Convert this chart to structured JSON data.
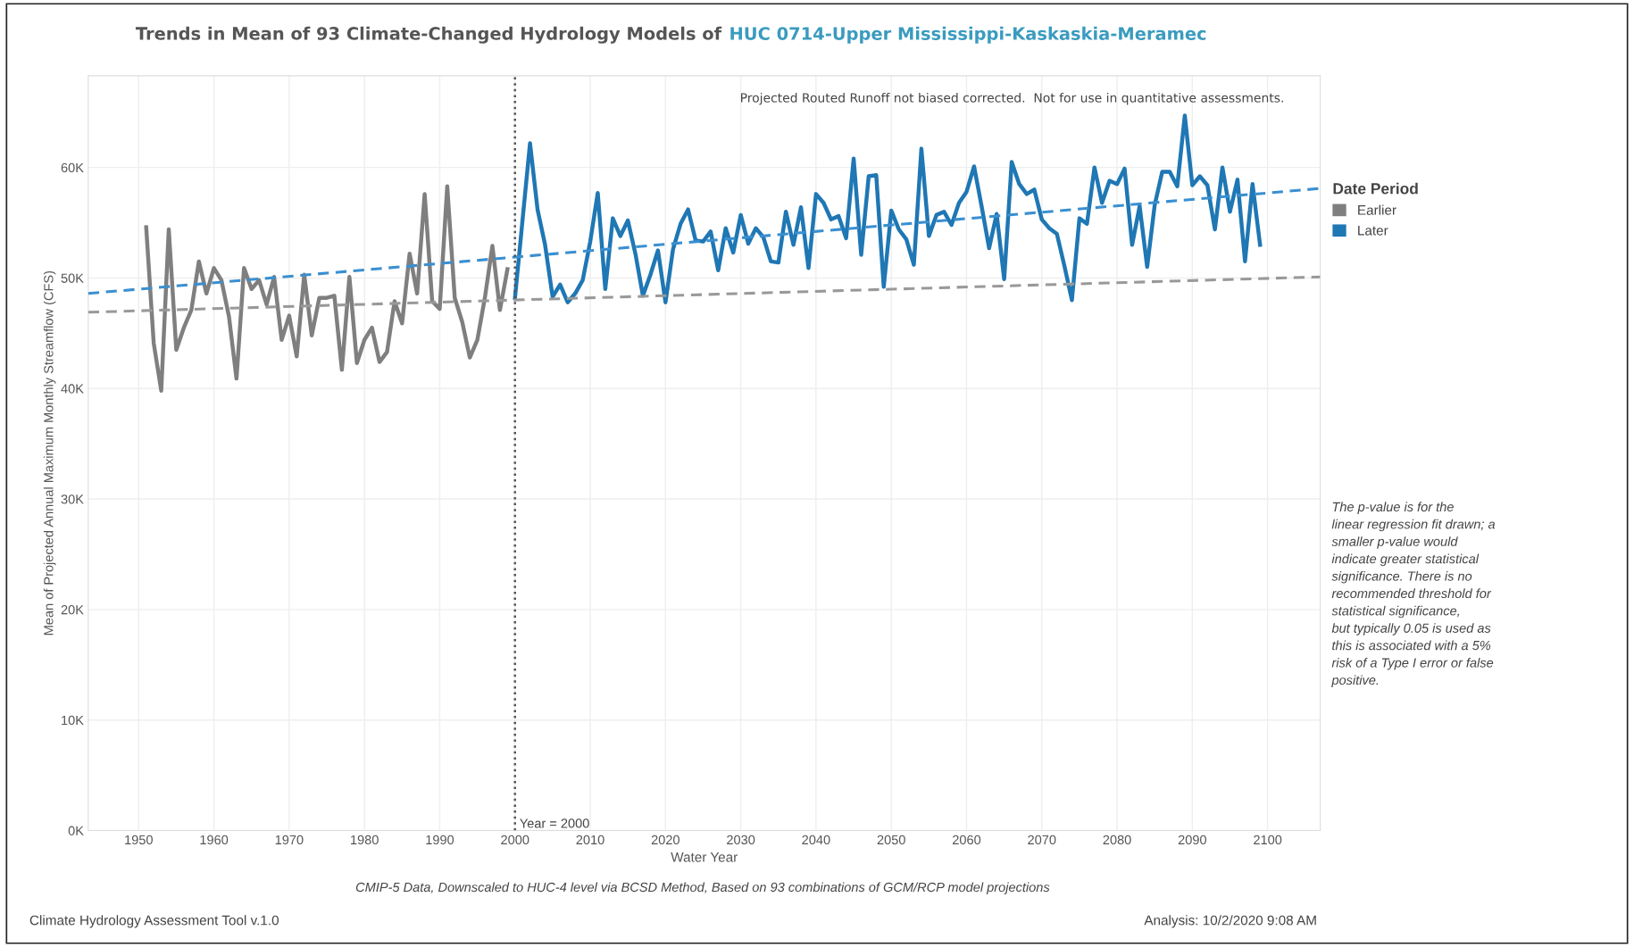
{
  "chart_data": {
    "type": "line",
    "title": "Trends in Mean of 93 Climate-Changed Hydrology Models of",
    "subtitle": "HUC 0714-Upper Mississippi-Kaskaskia-Meramec",
    "xlabel": "Water Year",
    "ylabel": "Mean of Projected Annual Maximum Monthly Streamflow (CFS)",
    "legend_title": "Date Period",
    "series": [
      {
        "name": "Earlier",
        "color": "#7f7f7f",
        "x": [
          1951,
          1952,
          1953,
          1954,
          1955,
          1956,
          1957,
          1958,
          1959,
          1960,
          1961,
          1962,
          1963,
          1964,
          1965,
          1966,
          1967,
          1968,
          1969,
          1970,
          1971,
          1972,
          1973,
          1974,
          1975,
          1976,
          1977,
          1978,
          1979,
          1980,
          1981,
          1982,
          1983,
          1984,
          1985,
          1986,
          1987,
          1988,
          1989,
          1990,
          1991,
          1992,
          1993,
          1994,
          1995,
          1996,
          1997,
          1998,
          1999
        ],
        "values": [
          54600,
          44100,
          39800,
          54400,
          43500,
          45500,
          47100,
          51500,
          48600,
          50900,
          49800,
          46500,
          40900,
          50900,
          49000,
          49800,
          47600,
          50100,
          44400,
          46600,
          42900,
          50300,
          44800,
          48200,
          48200,
          48400,
          41700,
          50100,
          42300,
          44400,
          45500,
          42400,
          43300,
          47900,
          45900,
          52200,
          48600,
          57600,
          47900,
          47200,
          58300,
          48200,
          46000,
          42800,
          44400,
          48200,
          52900,
          47100,
          50800
        ]
      },
      {
        "name": "Later",
        "color": "#1f77b4",
        "x": [
          2000,
          2001,
          2002,
          2003,
          2004,
          2005,
          2006,
          2007,
          2008,
          2009,
          2010,
          2011,
          2012,
          2013,
          2014,
          2015,
          2016,
          2017,
          2018,
          2019,
          2020,
          2021,
          2022,
          2023,
          2024,
          2025,
          2026,
          2027,
          2028,
          2029,
          2030,
          2031,
          2032,
          2033,
          2034,
          2035,
          2036,
          2037,
          2038,
          2039,
          2040,
          2041,
          2042,
          2043,
          2044,
          2045,
          2046,
          2047,
          2048,
          2049,
          2050,
          2051,
          2052,
          2053,
          2054,
          2055,
          2056,
          2057,
          2058,
          2059,
          2060,
          2061,
          2062,
          2063,
          2064,
          2065,
          2066,
          2067,
          2068,
          2069,
          2070,
          2071,
          2072,
          2073,
          2074,
          2075,
          2076,
          2077,
          2078,
          2079,
          2080,
          2081,
          2082,
          2083,
          2084,
          2085,
          2086,
          2087,
          2088,
          2089,
          2090,
          2091,
          2092,
          2093,
          2094,
          2095,
          2096,
          2097,
          2098,
          2099
        ],
        "values": [
          48200,
          55200,
          62200,
          56200,
          53000,
          48300,
          49400,
          47800,
          48600,
          49800,
          53300,
          57700,
          49000,
          55400,
          53800,
          55200,
          52200,
          48400,
          50300,
          52500,
          47800,
          52600,
          54900,
          56200,
          53400,
          53300,
          54200,
          50700,
          54500,
          52300,
          55700,
          53100,
          54500,
          53700,
          51500,
          51400,
          56000,
          53000,
          56400,
          50900,
          57600,
          56800,
          55300,
          55600,
          53600,
          60800,
          52100,
          59200,
          59300,
          49200,
          56100,
          54400,
          53500,
          51200,
          61700,
          53800,
          55700,
          56000,
          54800,
          56800,
          57800,
          60100,
          56500,
          52700,
          55800,
          49900,
          60500,
          58500,
          57600,
          58000,
          55300,
          54500,
          54000,
          51100,
          48000,
          55400,
          54900,
          60000,
          56800,
          58800,
          58500,
          59900,
          53000,
          56500,
          51000,
          56600,
          59600,
          59600,
          58300,
          64700,
          58400,
          59200,
          58400,
          54400,
          60000,
          56000,
          58900,
          51500,
          58500,
          53000
        ]
      },
      {
        "type": "line",
        "color": "#999999",
        "line_style": "dashed",
        "x": [
          1943.3,
          2107
        ],
        "values": [
          46900,
          50100
        ]
      },
      {
        "type": "line",
        "color": "#3a8fd0",
        "line_style": "dashed",
        "x": [
          1943.3,
          2107
        ],
        "values": [
          48600,
          58100
        ]
      }
    ],
    "xlim": [
      1943.3,
      2107
    ],
    "xticks": [
      1950,
      1960,
      1970,
      1980,
      1990,
      2000,
      2010,
      2020,
      2030,
      2040,
      2050,
      2060,
      2070,
      2080,
      2090,
      2100
    ],
    "ylim": [
      0,
      68300
    ],
    "yticks": [
      {
        "value": 0,
        "label": "0K"
      },
      {
        "value": 10000,
        "label": "10K"
      },
      {
        "value": 20000,
        "label": "20K"
      },
      {
        "value": 30000,
        "label": "30K"
      },
      {
        "value": 40000,
        "label": "40K"
      },
      {
        "value": 50000,
        "label": "50K"
      },
      {
        "value": 60000,
        "label": "60K"
      }
    ],
    "ref_lines": [
      {
        "axis": "x",
        "value": 2000,
        "label": "Year = 2000",
        "color": "#555555",
        "line_style": "dotted"
      }
    ],
    "grid": true,
    "legend": "right",
    "marker": "none",
    "line_style": "solid",
    "annotations": [
      "Projected Routed Runoff not biased corrected.  Not for use in quantitative assessments.",
      "The p-value is for the\nlinear regression fit drawn; a\nsmaller p-value would\nindicate greater statistical\nsignificance. There is no\nrecommended threshold for\nstatistical significance,\nbut typically 0.05 is used as\nthis is associated with a 5%\nrisk of a Type I error or false\npositive.",
      "CMIP-5 Data, Downscaled to HUC-4 level via BCSD Method, Based on 93 combinations of GCM/RCP model projections",
      "Climate Hydrology Assessment Tool v.1.0",
      "Analysis: 10/2/2020 9:08 AM"
    ]
  }
}
